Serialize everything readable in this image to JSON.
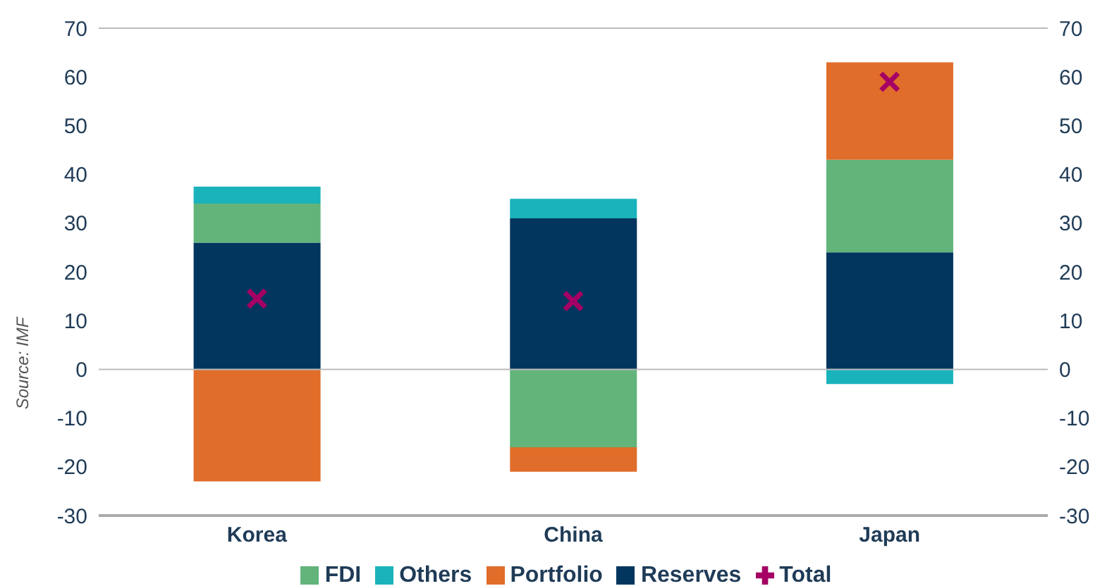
{
  "chart_data": {
    "type": "bar",
    "stacked": true,
    "categories": [
      "Korea",
      "China",
      "Japan"
    ],
    "series": [
      {
        "name": "Reserves",
        "color": "#02365e",
        "values": [
          26,
          31,
          24
        ]
      },
      {
        "name": "FDI",
        "color": "#62b47b",
        "values": [
          8,
          -16,
          19
        ]
      },
      {
        "name": "Portfolio",
        "color": "#e06d2a",
        "values": [
          -23,
          -5,
          20
        ]
      },
      {
        "name": "Others",
        "color": "#1ab3bb",
        "values": [
          3.5,
          4,
          -3
        ]
      },
      {
        "name": "Total",
        "type": "scatter",
        "marker": "cross",
        "color": "#a50064",
        "values": [
          14.5,
          14,
          59
        ]
      }
    ],
    "ylim": [
      -30,
      70
    ],
    "yticks": [
      -30,
      -20,
      -10,
      0,
      10,
      20,
      30,
      40,
      50,
      60,
      70
    ],
    "y2lim": [
      -30,
      70
    ],
    "y2ticks": [
      -30,
      -20,
      -10,
      0,
      10,
      20,
      30,
      40,
      50,
      60,
      70
    ],
    "grid": "y",
    "legend": "bottom",
    "annotations": [
      "Source: IMF"
    ]
  }
}
